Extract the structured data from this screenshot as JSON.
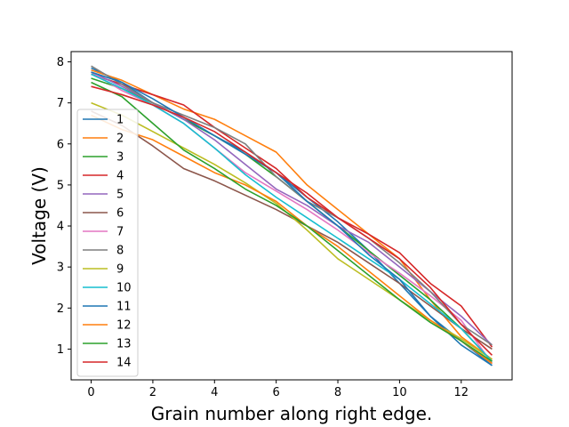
{
  "chart_data": {
    "type": "line",
    "title": "",
    "xlabel": "Grain number along right edge.",
    "ylabel": "Voltage (V)",
    "xlim": [
      -0.65,
      13.65
    ],
    "ylim": [
      0.25,
      8.25
    ],
    "xticks": [
      "0",
      "2",
      "4",
      "6",
      "8",
      "10",
      "12"
    ],
    "yticks": [
      "1",
      "2",
      "3",
      "4",
      "5",
      "6",
      "7",
      "8"
    ],
    "grid": false,
    "legend_position": "lower-left",
    "x": [
      0,
      1,
      2,
      3,
      4,
      5,
      6,
      7,
      8,
      9,
      10,
      11,
      12,
      13
    ],
    "series": [
      {
        "name": "1",
        "color": "#1f77b4",
        "values": [
          7.85,
          7.5,
          7.0,
          6.6,
          6.2,
          5.8,
          5.3,
          4.7,
          4.1,
          3.4,
          2.6,
          1.8,
          1.2,
          0.6
        ]
      },
      {
        "name": "2",
        "color": "#ff7f0e",
        "values": [
          7.8,
          7.55,
          7.2,
          6.85,
          6.6,
          6.2,
          5.8,
          5.0,
          4.4,
          3.8,
          3.2,
          2.2,
          1.3,
          0.75
        ]
      },
      {
        "name": "3",
        "color": "#2ca02c",
        "values": [
          7.6,
          7.35,
          7.0,
          6.6,
          6.2,
          5.75,
          5.2,
          4.6,
          4.0,
          3.4,
          2.8,
          2.2,
          1.5,
          0.7
        ]
      },
      {
        "name": "4",
        "color": "#d62728",
        "values": [
          7.7,
          7.45,
          7.2,
          6.95,
          6.4,
          5.9,
          5.4,
          4.7,
          4.2,
          3.8,
          3.35,
          2.6,
          2.05,
          1.05
        ]
      },
      {
        "name": "5",
        "color": "#9467bd",
        "values": [
          7.75,
          7.4,
          7.0,
          6.6,
          6.1,
          5.5,
          4.9,
          4.5,
          4.0,
          3.6,
          3.0,
          2.4,
          1.8,
          1.1
        ]
      },
      {
        "name": "6",
        "color": "#8c564b",
        "values": [
          6.8,
          6.45,
          5.95,
          5.4,
          5.1,
          4.75,
          4.4,
          4.0,
          3.6,
          3.1,
          2.6,
          2.05,
          1.5,
          1.0
        ]
      },
      {
        "name": "7",
        "color": "#e377c2",
        "values": [
          7.75,
          7.3,
          6.95,
          6.5,
          5.9,
          5.3,
          4.85,
          4.4,
          3.9,
          3.35,
          2.85,
          2.3,
          1.7,
          0.65
        ]
      },
      {
        "name": "8",
        "color": "#7f7f7f",
        "values": [
          7.9,
          7.45,
          7.0,
          6.7,
          6.4,
          6.0,
          5.2,
          4.6,
          4.2,
          3.7,
          3.1,
          2.4,
          1.6,
          1.1
        ]
      },
      {
        "name": "9",
        "color": "#bcbd22",
        "values": [
          7.0,
          6.7,
          6.3,
          5.9,
          5.5,
          5.05,
          4.55,
          3.9,
          3.2,
          2.7,
          2.2,
          1.7,
          1.25,
          0.75
        ]
      },
      {
        "name": "10",
        "color": "#17becf",
        "values": [
          7.7,
          7.35,
          6.95,
          6.5,
          5.9,
          5.25,
          4.7,
          4.2,
          3.7,
          3.2,
          2.7,
          2.1,
          1.5,
          0.7
        ]
      },
      {
        "name": "11",
        "color": "#1f77b4",
        "values": [
          7.75,
          7.5,
          7.1,
          6.65,
          6.2,
          5.75,
          5.3,
          4.6,
          4.0,
          3.3,
          2.7,
          1.8,
          1.1,
          0.6
        ]
      },
      {
        "name": "12",
        "color": "#ff7f0e",
        "values": [
          6.7,
          6.35,
          6.1,
          5.7,
          5.3,
          5.0,
          4.6,
          4.0,
          3.5,
          2.9,
          2.3,
          1.7,
          1.2,
          0.65
        ]
      },
      {
        "name": "13",
        "color": "#2ca02c",
        "values": [
          7.5,
          7.15,
          6.5,
          5.85,
          5.4,
          4.9,
          4.5,
          4.0,
          3.4,
          2.8,
          2.2,
          1.65,
          1.2,
          0.7
        ]
      },
      {
        "name": "14",
        "color": "#d62728",
        "values": [
          7.4,
          7.2,
          6.95,
          6.65,
          6.3,
          5.8,
          5.3,
          4.8,
          4.2,
          3.7,
          3.2,
          2.5,
          1.6,
          0.85
        ]
      }
    ]
  }
}
